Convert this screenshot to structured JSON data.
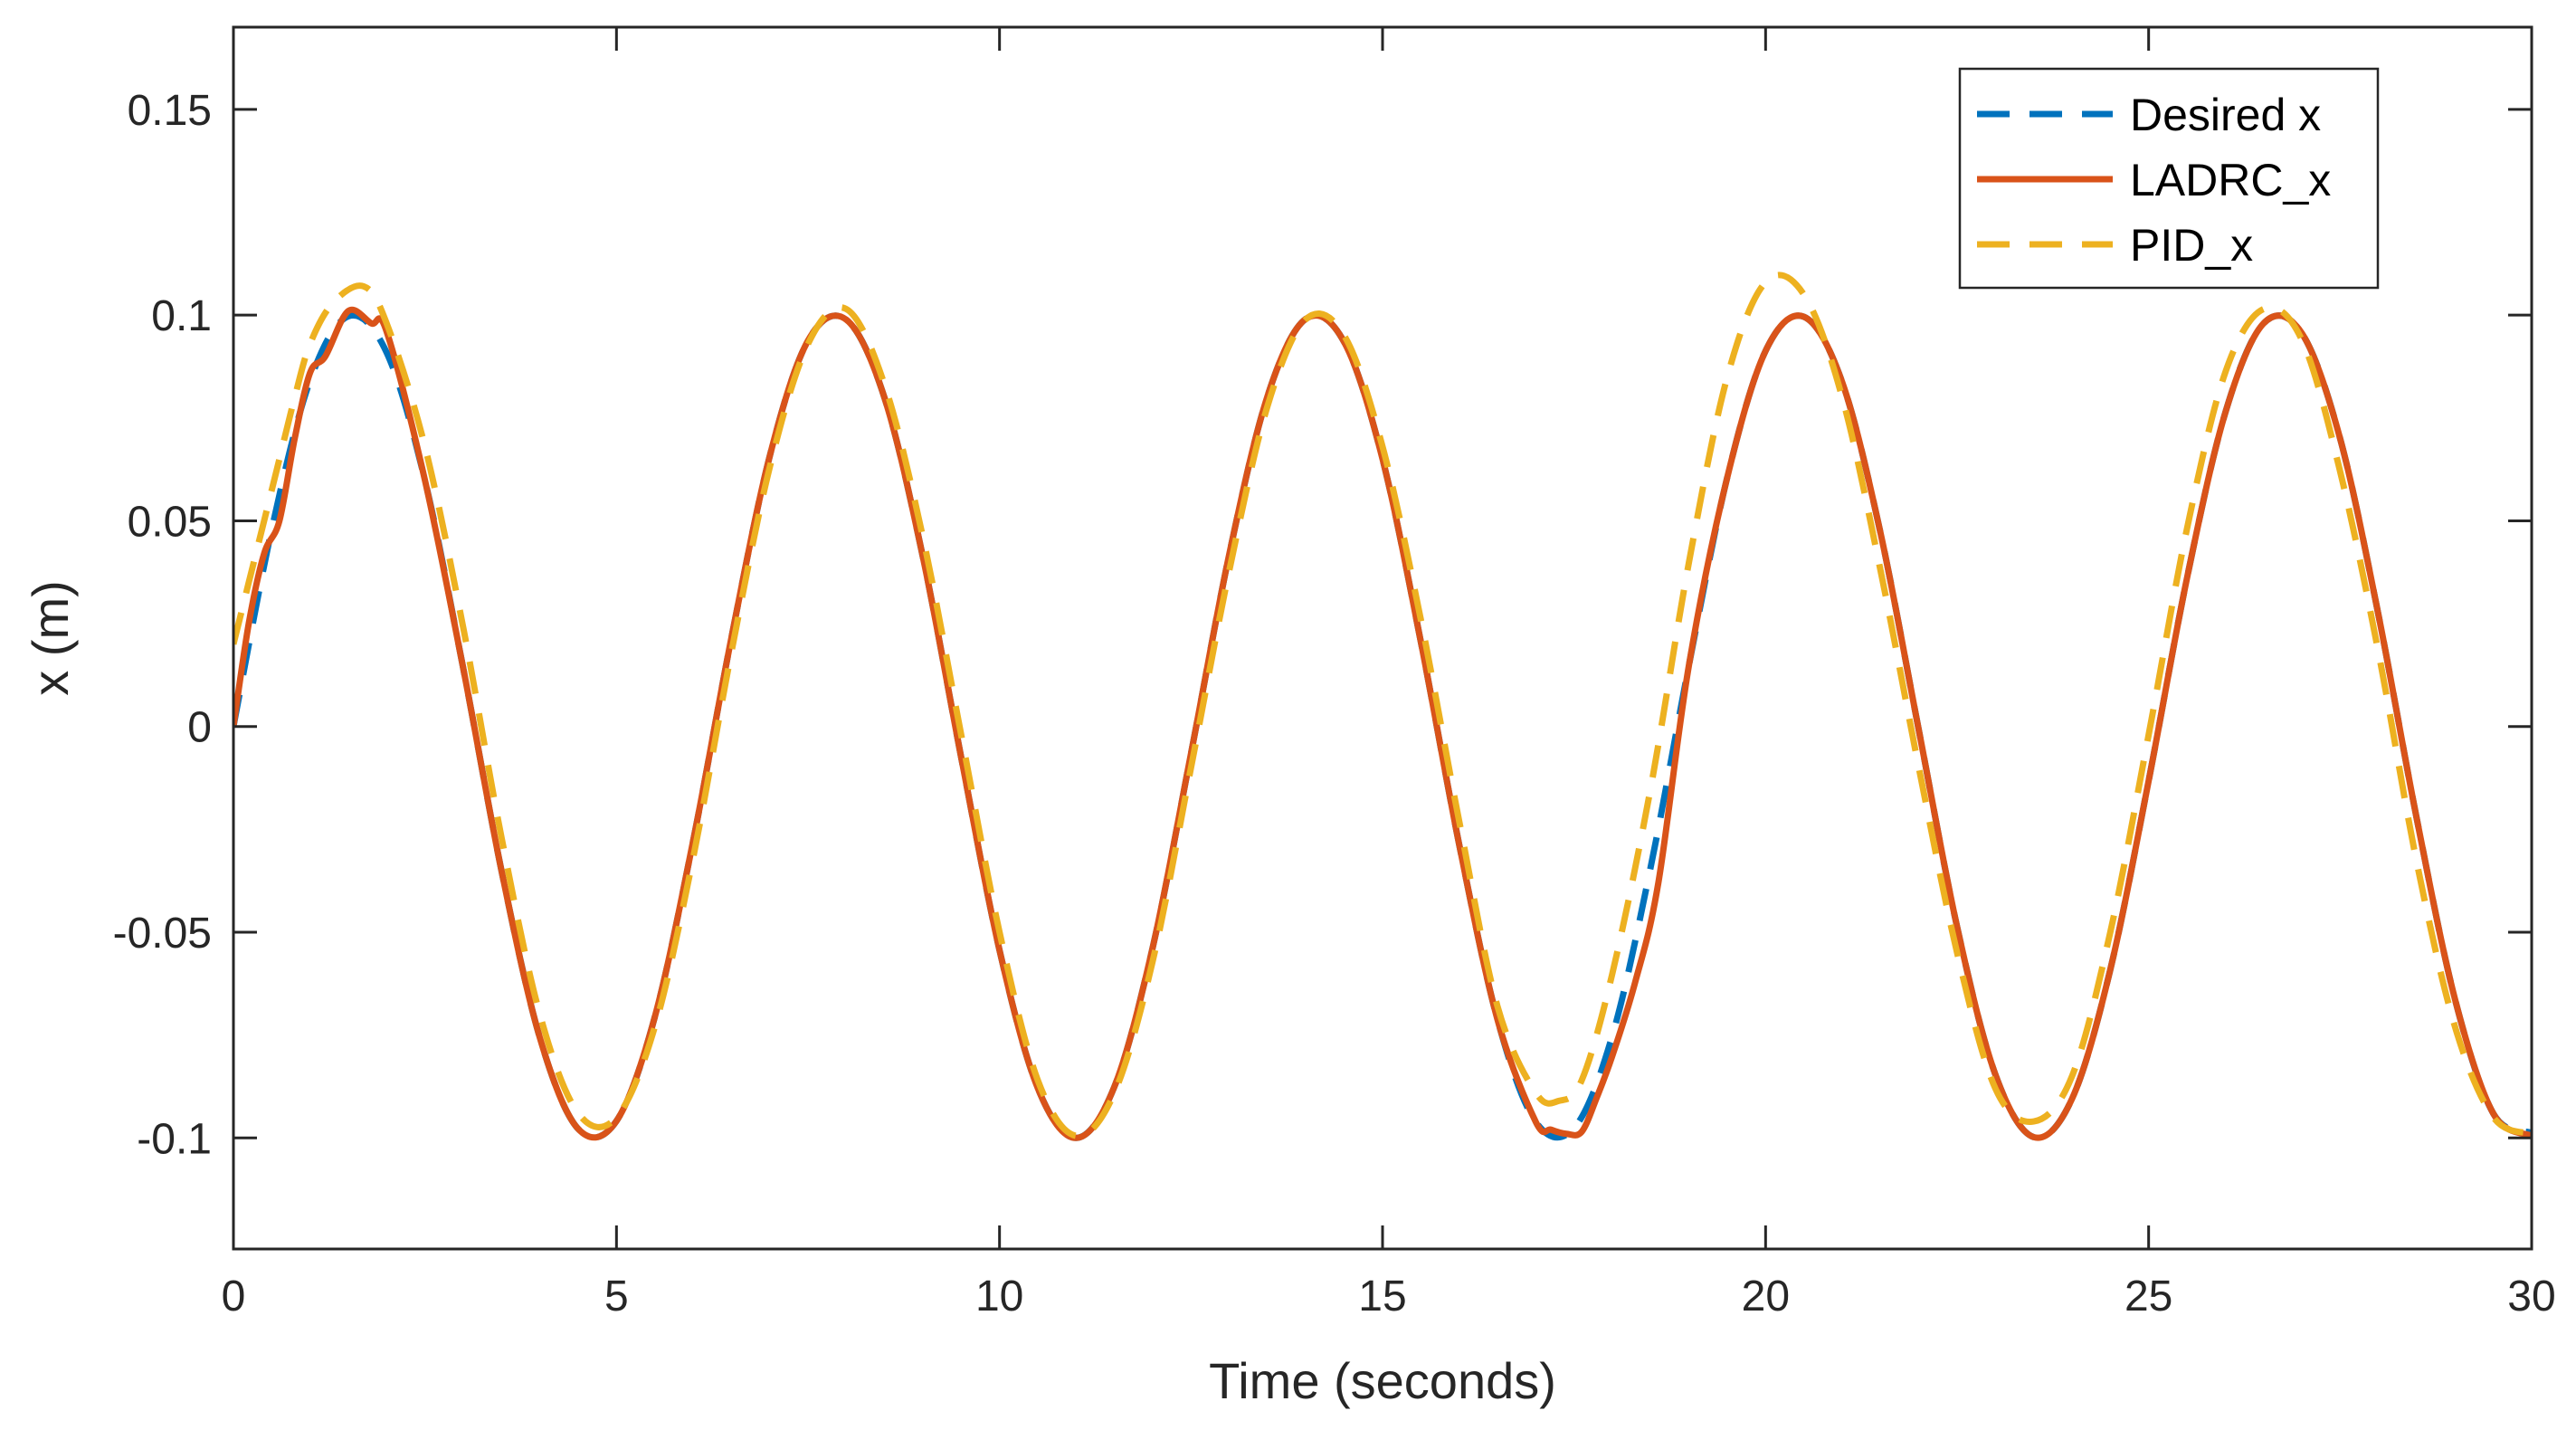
{
  "chart_data": {
    "type": "line",
    "xlabel": "Time (seconds)",
    "ylabel": "x (m)",
    "xlim": [
      0,
      30
    ],
    "ylim": [
      -0.127,
      0.17
    ],
    "xticks": [
      0,
      5,
      10,
      15,
      20,
      25,
      30
    ],
    "xtick_labels": [
      "0",
      "5",
      "10",
      "15",
      "20",
      "25",
      "30"
    ],
    "yticks": [
      -0.1,
      -0.05,
      0,
      0.05,
      0.1,
      0.15
    ],
    "ytick_labels": [
      "-0.1",
      "-0.05",
      "0",
      "0.05",
      "0.1",
      "0.15"
    ],
    "grid": false,
    "legend_position": "top-right",
    "series": [
      {
        "name": "Desired x",
        "color": "#0072BD",
        "style": "dashed",
        "x": [
          0,
          0.5,
          1,
          1.5,
          2,
          2.5,
          3,
          3.5,
          4,
          4.5,
          5,
          5.5,
          6,
          6.5,
          7,
          7.5,
          8,
          8.5,
          9,
          9.5,
          10,
          10.5,
          11,
          11.5,
          12,
          12.5,
          13,
          13.5,
          14,
          14.5,
          15,
          15.5,
          16,
          16.5,
          17,
          17.5,
          18,
          18.5,
          19,
          19.5,
          20,
          20.5,
          21,
          21.5,
          22,
          22.5,
          23,
          23.5,
          24,
          24.5,
          25,
          25.5,
          26,
          26.5,
          27,
          27.5,
          28,
          28.5,
          29,
          29.5,
          30
        ],
        "y": [
          0,
          0.0479,
          0.0841,
          0.0997,
          0.0909,
          0.0598,
          0.0141,
          -0.0351,
          -0.0757,
          -0.0978,
          -0.0959,
          -0.0706,
          -0.0279,
          0.0215,
          0.0657,
          0.0938,
          0.0989,
          0.0798,
          0.0412,
          -0.0075,
          -0.0544,
          -0.0879,
          -0.1,
          -0.0875,
          -0.0537,
          -0.0066,
          0.042,
          0.0804,
          0.0991,
          0.0934,
          0.065,
          0.0206,
          -0.0287,
          -0.0712,
          -0.0961,
          -0.0976,
          -0.0751,
          -0.0342,
          0.015,
          0.0606,
          0.0913,
          0.0996,
          0.0837,
          0.0471,
          -0.0009,
          -0.0487,
          -0.0846,
          -0.0998,
          -0.0905,
          -0.0591,
          -0.0132,
          0.036,
          0.0762,
          0.098,
          0.0956,
          0.07,
          0.0271,
          -0.0224,
          -0.0663,
          -0.0941,
          -0.0988
        ]
      },
      {
        "name": "LADRC_x",
        "color": "#D95319",
        "style": "solid",
        "x": [
          0,
          0.2,
          0.4,
          0.6,
          0.8,
          1,
          1.2,
          1.5,
          1.8,
          2,
          2.5,
          3,
          3.5,
          4,
          4.5,
          5,
          5.5,
          6,
          6.5,
          7,
          7.5,
          8,
          8.5,
          9,
          9.5,
          10,
          10.5,
          11,
          11.5,
          12,
          12.5,
          13,
          13.5,
          14,
          14.5,
          15,
          15.5,
          16,
          16.5,
          17,
          17.2,
          17.4,
          17.6,
          17.8,
          18,
          18.3,
          18.6,
          19,
          19.5,
          20,
          20.5,
          21,
          21.5,
          22,
          22.5,
          23,
          23.5,
          24,
          24.5,
          25,
          25.5,
          26,
          26.5,
          27,
          27.5,
          28,
          28.5,
          29,
          29.5,
          30
        ],
        "y": [
          0,
          0.025,
          0.042,
          0.05,
          0.07,
          0.086,
          0.09,
          0.101,
          0.098,
          0.096,
          0.0598,
          0.0141,
          -0.0351,
          -0.0757,
          -0.0978,
          -0.0959,
          -0.0706,
          -0.0279,
          0.0215,
          0.0657,
          0.0938,
          0.0989,
          0.0798,
          0.0412,
          -0.0075,
          -0.0544,
          -0.0879,
          -0.1,
          -0.0875,
          -0.0537,
          -0.0066,
          0.042,
          0.0804,
          0.0991,
          0.0934,
          0.065,
          0.0206,
          -0.0287,
          -0.0712,
          -0.0961,
          -0.098,
          -0.099,
          -0.0985,
          -0.09,
          -0.08,
          -0.062,
          -0.038,
          0.015,
          0.0606,
          0.0913,
          0.0996,
          0.0837,
          0.0471,
          -0.0009,
          -0.0487,
          -0.0846,
          -0.0998,
          -0.0905,
          -0.0591,
          -0.0132,
          0.036,
          0.0762,
          0.098,
          0.0956,
          0.07,
          0.0271,
          -0.0224,
          -0.0663,
          -0.0941,
          -0.0995
        ]
      },
      {
        "name": "PID_x",
        "color": "#EDB120",
        "style": "dashed",
        "x": [
          0,
          0.2,
          0.4,
          0.6,
          0.8,
          1,
          1.3,
          1.7,
          2,
          2.5,
          3,
          3.5,
          4,
          4.5,
          5,
          5.5,
          6,
          6.5,
          7,
          7.5,
          8,
          8.5,
          9,
          9.5,
          10,
          10.5,
          11,
          11.5,
          12,
          12.5,
          13,
          13.5,
          14,
          14.5,
          15,
          15.5,
          16,
          16.5,
          17,
          17.3,
          17.6,
          18,
          18.5,
          19,
          19.5,
          20,
          20.5,
          21,
          21.5,
          22,
          22.5,
          23,
          23.5,
          24,
          24.5,
          25,
          25.5,
          26,
          26.5,
          27,
          27.5,
          28,
          28.5,
          29,
          29.5,
          30
        ],
        "y": [
          0.02,
          0.035,
          0.05,
          0.065,
          0.08,
          0.093,
          0.103,
          0.107,
          0.098,
          0.068,
          0.024,
          -0.027,
          -0.07,
          -0.094,
          -0.095,
          -0.073,
          -0.032,
          0.018,
          0.063,
          0.093,
          0.1015,
          0.083,
          0.046,
          -0.002,
          -0.05,
          -0.086,
          -0.0995,
          -0.089,
          -0.057,
          -0.01,
          0.038,
          0.078,
          0.099,
          0.095,
          0.068,
          0.026,
          -0.023,
          -0.068,
          -0.089,
          -0.091,
          -0.086,
          -0.06,
          -0.015,
          0.04,
          0.085,
          0.108,
          0.105,
          0.08,
          0.038,
          -0.01,
          -0.055,
          -0.088,
          -0.096,
          -0.085,
          -0.05,
          -0.002,
          0.048,
          0.086,
          0.1015,
          0.094,
          0.062,
          0.018,
          -0.033,
          -0.073,
          -0.095,
          -0.099
        ]
      }
    ]
  }
}
